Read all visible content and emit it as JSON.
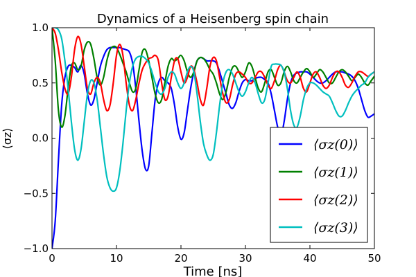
{
  "chart_data": {
    "type": "line",
    "title": "Dynamics of a Heisenberg spin chain",
    "xlabel": "Time [ns]",
    "ylabel": "⟨σz⟩",
    "xlim": [
      0,
      50
    ],
    "ylim": [
      -1.0,
      1.0
    ],
    "xticks": [
      0,
      10,
      20,
      30,
      40,
      50
    ],
    "yticks": [
      -1.0,
      -0.5,
      0.0,
      0.5,
      1.0
    ],
    "xtick_labels": [
      "0",
      "10",
      "20",
      "30",
      "40",
      "50"
    ],
    "ytick_labels": [
      "−1.0",
      "−0.5",
      "0.0",
      "0.5",
      "1.0"
    ],
    "grid": false,
    "legend_position": "lower-right",
    "series": [
      {
        "name": "⟨σz(0)⟩",
        "color": "#0000ff",
        "x": [
          0,
          0.5,
          1,
          1.5,
          2,
          2.5,
          3,
          3.5,
          4,
          4.5,
          5,
          5.5,
          6,
          6.5,
          7,
          7.5,
          8,
          8.5,
          9,
          9.5,
          10,
          10.5,
          11,
          11.5,
          12,
          12.5,
          13,
          13.5,
          14,
          14.5,
          15,
          15.5,
          16,
          16.5,
          17,
          17.5,
          18,
          18.5,
          19,
          19.5,
          20,
          20.5,
          21,
          21.5,
          22,
          22.5,
          23,
          23.5,
          24,
          24.5,
          25,
          25.5,
          26,
          26.5,
          27,
          27.5,
          28,
          28.5,
          29,
          29.5,
          30,
          30.5,
          31,
          31.5,
          32,
          32.5,
          33,
          33.5,
          34,
          34.5,
          35,
          35.5,
          36,
          36.5,
          37,
          37.5,
          38,
          38.5,
          39,
          39.5,
          40,
          40.5,
          41,
          41.5,
          42,
          42.5,
          43,
          43.5,
          44,
          44.5,
          45,
          45.5,
          46,
          46.5,
          47,
          47.5,
          48,
          48.5,
          49,
          49.5,
          50
        ],
        "y": [
          -1.0,
          -0.75,
          -0.2,
          0.3,
          0.55,
          0.65,
          0.66,
          0.64,
          0.6,
          0.66,
          0.58,
          0.4,
          0.3,
          0.35,
          0.5,
          0.65,
          0.74,
          0.8,
          0.82,
          0.82,
          0.82,
          0.82,
          0.81,
          0.8,
          0.78,
          0.68,
          0.45,
          0.15,
          -0.12,
          -0.28,
          -0.25,
          0.05,
          0.35,
          0.5,
          0.55,
          0.52,
          0.5,
          0.45,
          0.3,
          0.1,
          -0.01,
          0.05,
          0.25,
          0.45,
          0.6,
          0.7,
          0.73,
          0.72,
          0.7,
          0.7,
          0.7,
          0.68,
          0.6,
          0.5,
          0.4,
          0.3,
          0.27,
          0.32,
          0.42,
          0.5,
          0.53,
          0.52,
          0.52,
          0.54,
          0.55,
          0.55,
          0.53,
          0.5,
          0.4,
          0.25,
          0.1,
          0.02,
          0.15,
          0.35,
          0.5,
          0.57,
          0.59,
          0.6,
          0.6,
          0.6,
          0.58,
          0.55,
          0.52,
          0.5,
          0.5,
          0.52,
          0.55,
          0.58,
          0.6,
          0.6,
          0.6,
          0.59,
          0.58,
          0.56,
          0.52,
          0.45,
          0.35,
          0.25,
          0.19,
          0.2,
          0.22
        ]
      },
      {
        "name": "⟨σz(1)⟩",
        "color": "#008000",
        "x": [
          0,
          0.5,
          1,
          1.5,
          2,
          2.5,
          3,
          3.5,
          4,
          4.5,
          5,
          5.5,
          6,
          6.5,
          7,
          7.5,
          8,
          8.5,
          9,
          9.5,
          10,
          10.5,
          11,
          11.5,
          12,
          12.5,
          13,
          13.5,
          14,
          14.5,
          15,
          15.5,
          16,
          16.5,
          17,
          17.5,
          18,
          18.5,
          19,
          19.5,
          20,
          20.5,
          21,
          21.5,
          22,
          22.5,
          23,
          23.5,
          24,
          24.5,
          25,
          25.5,
          26,
          26.5,
          27,
          27.5,
          28,
          28.5,
          29,
          29.5,
          30,
          30.5,
          31,
          31.5,
          32,
          32.5,
          33,
          33.5,
          34,
          34.5,
          35,
          35.5,
          36,
          36.5,
          37,
          37.5,
          38,
          38.5,
          39,
          39.5,
          40,
          40.5,
          41,
          41.5,
          42,
          42.5,
          43,
          43.5,
          44,
          44.5,
          45,
          45.5,
          46,
          46.5,
          47,
          47.5,
          48,
          48.5,
          49,
          49.5,
          50
        ],
        "y": [
          1.0,
          0.7,
          0.25,
          0.1,
          0.2,
          0.45,
          0.65,
          0.68,
          0.62,
          0.65,
          0.8,
          0.87,
          0.85,
          0.72,
          0.55,
          0.48,
          0.55,
          0.7,
          0.8,
          0.83,
          0.82,
          0.76,
          0.68,
          0.6,
          0.5,
          0.42,
          0.45,
          0.62,
          0.78,
          0.8,
          0.7,
          0.55,
          0.4,
          0.32,
          0.35,
          0.5,
          0.65,
          0.72,
          0.7,
          0.72,
          0.75,
          0.7,
          0.6,
          0.55,
          0.6,
          0.7,
          0.73,
          0.72,
          0.68,
          0.62,
          0.58,
          0.5,
          0.4,
          0.35,
          0.42,
          0.55,
          0.64,
          0.65,
          0.6,
          0.55,
          0.6,
          0.68,
          0.65,
          0.55,
          0.45,
          0.42,
          0.5,
          0.6,
          0.62,
          0.55,
          0.48,
          0.5,
          0.6,
          0.65,
          0.6,
          0.52,
          0.5,
          0.55,
          0.6,
          0.63,
          0.6,
          0.55,
          0.58,
          0.62,
          0.6,
          0.55,
          0.5,
          0.5,
          0.55,
          0.6,
          0.62,
          0.6,
          0.56,
          0.52,
          0.55,
          0.58,
          0.55,
          0.5,
          0.48,
          0.52,
          0.56
        ]
      },
      {
        "name": "⟨σz(2)⟩",
        "color": "#ff0000",
        "x": [
          0,
          0.5,
          1,
          1.5,
          2,
          2.5,
          3,
          3.5,
          4,
          4.5,
          5,
          5.5,
          6,
          6.5,
          7,
          7.5,
          8,
          8.5,
          9,
          9.5,
          10,
          10.5,
          11,
          11.5,
          12,
          12.5,
          13,
          13.5,
          14,
          14.5,
          15,
          15.5,
          16,
          16.5,
          17,
          17.5,
          18,
          18.5,
          19,
          19.5,
          20,
          20.5,
          21,
          21.5,
          22,
          22.5,
          23,
          23.5,
          24,
          24.5,
          25,
          25.5,
          26,
          26.5,
          27,
          27.5,
          28,
          28.5,
          29,
          29.5,
          30,
          30.5,
          31,
          31.5,
          32,
          32.5,
          33,
          33.5,
          34,
          34.5,
          35,
          35.5,
          36,
          36.5,
          37,
          37.5,
          38,
          38.5,
          39,
          39.5,
          40,
          40.5,
          41,
          41.5,
          42,
          42.5,
          43,
          43.5,
          44,
          44.5,
          45,
          45.5,
          46,
          46.5,
          47,
          47.5,
          48,
          48.5,
          49,
          49.5,
          50
        ],
        "y": [
          1.0,
          0.95,
          0.8,
          0.6,
          0.45,
          0.4,
          0.55,
          0.8,
          0.92,
          0.85,
          0.65,
          0.45,
          0.4,
          0.5,
          0.55,
          0.5,
          0.35,
          0.25,
          0.3,
          0.5,
          0.75,
          0.85,
          0.75,
          0.5,
          0.3,
          0.25,
          0.35,
          0.5,
          0.62,
          0.68,
          0.72,
          0.73,
          0.75,
          0.7,
          0.5,
          0.35,
          0.38,
          0.55,
          0.7,
          0.72,
          0.6,
          0.5,
          0.55,
          0.65,
          0.62,
          0.5,
          0.35,
          0.3,
          0.45,
          0.65,
          0.73,
          0.7,
          0.55,
          0.4,
          0.32,
          0.35,
          0.48,
          0.58,
          0.6,
          0.58,
          0.55,
          0.5,
          0.5,
          0.55,
          0.6,
          0.6,
          0.55,
          0.48,
          0.45,
          0.52,
          0.62,
          0.66,
          0.6,
          0.52,
          0.5,
          0.55,
          0.6,
          0.55,
          0.45,
          0.42,
          0.5,
          0.58,
          0.6,
          0.55,
          0.48,
          0.45,
          0.48,
          0.55,
          0.6,
          0.6,
          0.55,
          0.48,
          0.46,
          0.5,
          0.56,
          0.6,
          0.6,
          0.58,
          0.56,
          0.58,
          0.6
        ]
      },
      {
        "name": "⟨σz(3)⟩",
        "color": "#00bfbf",
        "x": [
          0,
          0.5,
          1,
          1.5,
          2,
          2.5,
          3,
          3.5,
          4,
          4.5,
          5,
          5.5,
          6,
          6.5,
          7,
          7.5,
          8,
          8.5,
          9,
          9.5,
          10,
          10.5,
          11,
          11.5,
          12,
          12.5,
          13,
          13.5,
          14,
          14.5,
          15,
          15.5,
          16,
          16.5,
          17,
          17.5,
          18,
          18.5,
          19,
          19.5,
          20,
          20.5,
          21,
          21.5,
          22,
          22.5,
          23,
          23.5,
          24,
          24.5,
          25,
          25.5,
          26,
          26.5,
          27,
          27.5,
          28,
          28.5,
          29,
          29.5,
          30,
          30.5,
          31,
          31.5,
          32,
          32.5,
          33,
          33.5,
          34,
          34.5,
          35,
          35.5,
          36,
          36.5,
          37,
          37.5,
          38,
          38.5,
          39,
          39.5,
          40,
          40.5,
          41,
          41.5,
          42,
          42.5,
          43,
          43.5,
          44,
          44.5,
          45,
          45.5,
          46,
          46.5,
          47,
          47.5,
          48,
          48.5,
          49,
          49.5,
          50
        ],
        "y": [
          1.0,
          1.0,
          0.98,
          0.9,
          0.7,
          0.45,
          0.15,
          -0.1,
          -0.2,
          -0.1,
          0.15,
          0.4,
          0.52,
          0.5,
          0.35,
          0.1,
          -0.15,
          -0.35,
          -0.45,
          -0.48,
          -0.45,
          -0.3,
          -0.05,
          0.25,
          0.5,
          0.65,
          0.72,
          0.74,
          0.74,
          0.72,
          0.68,
          0.6,
          0.5,
          0.42,
          0.4,
          0.45,
          0.55,
          0.6,
          0.58,
          0.5,
          0.45,
          0.5,
          0.6,
          0.65,
          0.6,
          0.4,
          0.15,
          -0.05,
          -0.15,
          -0.2,
          -0.15,
          0.05,
          0.3,
          0.5,
          0.6,
          0.62,
          0.58,
          0.5,
          0.42,
          0.38,
          0.42,
          0.5,
          0.55,
          0.5,
          0.4,
          0.32,
          0.35,
          0.5,
          0.65,
          0.67,
          0.67,
          0.66,
          0.6,
          0.45,
          0.25,
          0.12,
          0.1,
          0.2,
          0.35,
          0.45,
          0.5,
          0.5,
          0.48,
          0.45,
          0.42,
          0.4,
          0.38,
          0.32,
          0.25,
          0.2,
          0.2,
          0.25,
          0.32,
          0.38,
          0.42,
          0.45,
          0.48,
          0.5,
          0.55,
          0.58,
          0.6
        ]
      }
    ]
  }
}
